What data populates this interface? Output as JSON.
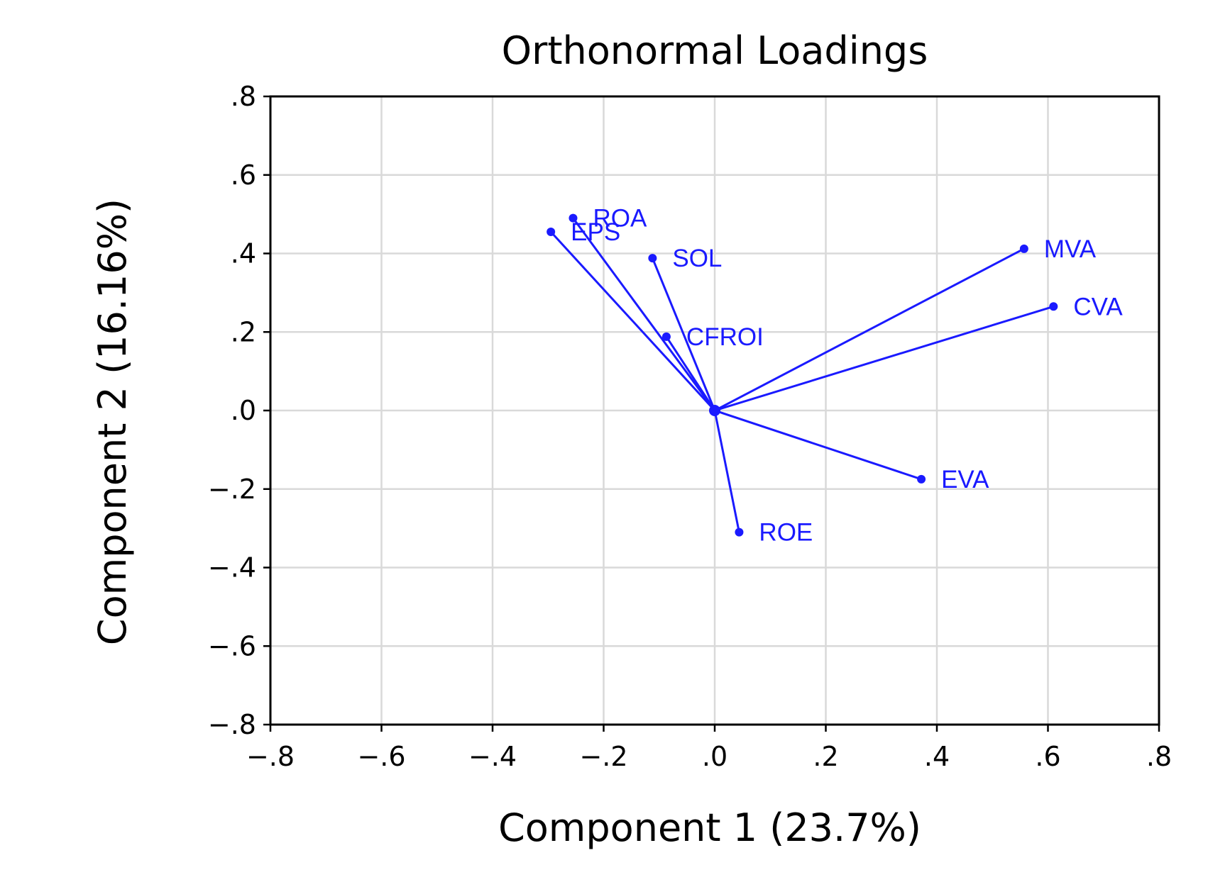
{
  "chart_data": {
    "type": "scatter",
    "subtype": "loadings-biplot",
    "title": "Orthonormal Loadings",
    "xlabel": "Component 1 (23.7%)",
    "ylabel": "Component 2 (16.16%)",
    "xlim": [
      -0.8,
      0.8
    ],
    "ylim": [
      -0.8,
      0.8
    ],
    "xticks": [
      -0.8,
      -0.6,
      -0.4,
      -0.2,
      0.0,
      0.2,
      0.4,
      0.6,
      0.8
    ],
    "yticks": [
      -0.8,
      -0.6,
      -0.4,
      -0.2,
      0.0,
      0.2,
      0.4,
      0.6,
      0.8
    ],
    "xtick_labels": [
      "−.8",
      "−.6",
      "−.4",
      "−.2",
      ".0",
      ".2",
      ".4",
      ".6",
      ".8"
    ],
    "ytick_labels": [
      "−.8",
      "−.6",
      "−.4",
      "−.2",
      ".0",
      ".2",
      ".4",
      ".6",
      ".8"
    ],
    "grid": true,
    "color": "#1a1aff",
    "grid_color": "#d9d9d9",
    "vectors_from_origin": true,
    "points": [
      {
        "label": "ROA",
        "x": -0.255,
        "y": 0.49
      },
      {
        "label": "EPS",
        "x": -0.295,
        "y": 0.455
      },
      {
        "label": "SOL",
        "x": -0.112,
        "y": 0.388
      },
      {
        "label": "CFROI",
        "x": -0.087,
        "y": 0.188
      },
      {
        "label": "MVA",
        "x": 0.557,
        "y": 0.412
      },
      {
        "label": "CVA",
        "x": 0.61,
        "y": 0.265
      },
      {
        "label": "EVA",
        "x": 0.372,
        "y": -0.175
      },
      {
        "label": "ROE",
        "x": 0.044,
        "y": -0.31
      }
    ]
  }
}
